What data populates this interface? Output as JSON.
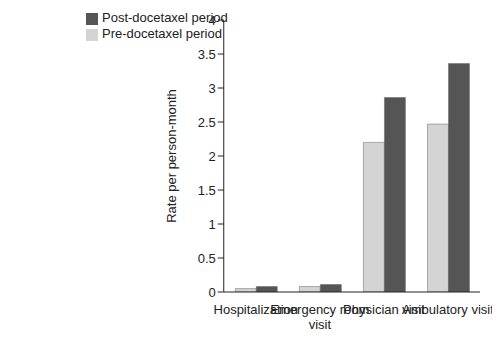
{
  "chart_data": {
    "type": "bar",
    "y_label": "Rate per person-month",
    "categories": [
      "Hospitalization",
      "Emergency room visit",
      "Physician visit",
      "Ambulatory visit"
    ],
    "series": [
      {
        "name": "Pre-docetaxel period",
        "color": "#d4d4d4",
        "values": [
          0.05,
          0.08,
          2.2,
          2.47
        ]
      },
      {
        "name": "Post-docetaxel period",
        "color": "#555555",
        "values": [
          0.08,
          0.11,
          2.86,
          3.36
        ]
      }
    ],
    "ylim": [
      0,
      4
    ],
    "yticks": [
      0,
      0.5,
      1,
      1.5,
      2,
      2.5,
      3,
      3.5,
      4
    ],
    "grid": false,
    "legend": "upper left"
  }
}
